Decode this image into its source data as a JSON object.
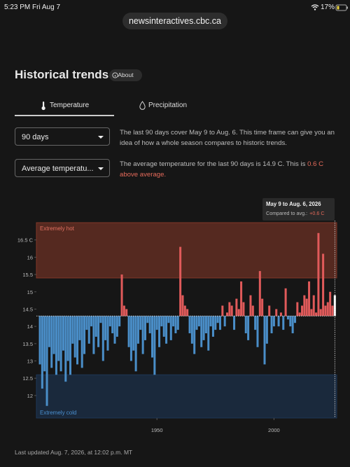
{
  "status_bar": {
    "time": "5:23 PM",
    "date": "Fri Aug 7",
    "battery": "17%"
  },
  "url": "newsinteractives.cbc.ca",
  "header": {
    "title": "Historical trends",
    "about": "About"
  },
  "tabs": [
    "Temperature",
    "Precipitation"
  ],
  "controls": {
    "period": "90 days",
    "measure": "Average temperatu..."
  },
  "descriptions": {
    "period": "The last 90 days cover May 9 to Aug. 6. This time frame can give you an idea of how a whole season compares to historic trends.",
    "measure": "The average temperature for the last 90 days is 14.9 C. This is ",
    "measure_highlight": "0.6 C above average."
  },
  "chart_data": {
    "type": "bar",
    "x": [
      1900,
      1901,
      1902,
      1903,
      1904,
      1905,
      1906,
      1907,
      1908,
      1909,
      1910,
      1911,
      1912,
      1913,
      1914,
      1915,
      1916,
      1917,
      1918,
      1919,
      1920,
      1921,
      1922,
      1923,
      1924,
      1925,
      1926,
      1927,
      1928,
      1929,
      1930,
      1931,
      1932,
      1933,
      1934,
      1935,
      1936,
      1937,
      1938,
      1939,
      1940,
      1941,
      1942,
      1943,
      1944,
      1945,
      1946,
      1947,
      1948,
      1949,
      1950,
      1951,
      1952,
      1953,
      1954,
      1955,
      1956,
      1957,
      1958,
      1959,
      1960,
      1961,
      1962,
      1963,
      1964,
      1965,
      1966,
      1967,
      1968,
      1969,
      1970,
      1971,
      1972,
      1973,
      1974,
      1975,
      1976,
      1977,
      1978,
      1979,
      1980,
      1981,
      1982,
      1983,
      1984,
      1985,
      1986,
      1987,
      1988,
      1989,
      1990,
      1991,
      1992,
      1993,
      1994,
      1995,
      1996,
      1997,
      1998,
      1999,
      2000,
      2001,
      2002,
      2003,
      2004,
      2005,
      2006,
      2007,
      2008,
      2009,
      2010,
      2011,
      2012,
      2013,
      2014,
      2015,
      2016,
      2017,
      2018,
      2019,
      2020,
      2021,
      2022,
      2023,
      2024,
      2025,
      2026
    ],
    "values": [
      12.9,
      12.2,
      12.7,
      11.7,
      13.4,
      12.8,
      13.2,
      12.6,
      13.0,
      12.7,
      13.3,
      12.4,
      13.0,
      12.6,
      13.5,
      13.1,
      12.9,
      13.6,
      12.8,
      13.2,
      13.9,
      13.5,
      14.0,
      13.2,
      13.7,
      13.4,
      14.1,
      13.0,
      13.6,
      13.3,
      14.0,
      13.8,
      13.5,
      13.7,
      14.0,
      15.5,
      14.6,
      14.5,
      13.4,
      13.0,
      13.3,
      12.7,
      13.5,
      13.9,
      13.2,
      13.6,
      14.1,
      13.8,
      13.1,
      12.6,
      13.9,
      13.4,
      14.0,
      13.7,
      13.5,
      14.1,
      13.6,
      14.0,
      13.8,
      13.9,
      16.3,
      14.9,
      14.6,
      14.5,
      13.8,
      13.5,
      13.2,
      13.9,
      14.0,
      13.4,
      13.6,
      13.8,
      13.3,
      14.0,
      13.7,
      13.9,
      14.1,
      13.9,
      14.6,
      14.0,
      14.4,
      14.7,
      14.6,
      13.9,
      14.8,
      14.5,
      15.3,
      14.7,
      13.8,
      13.6,
      14.9,
      14.6,
      13.9,
      13.4,
      15.6,
      14.8,
      12.9,
      13.5,
      14.6,
      13.8,
      14.0,
      14.5,
      14.0,
      14.4,
      13.9,
      15.1,
      14.2,
      14.0,
      13.8,
      14.1,
      14.7,
      14.4,
      14.6,
      14.9,
      14.8,
      15.3,
      14.5,
      14.9,
      14.4,
      16.7,
      14.5,
      16.1,
      14.6,
      14.7,
      15.0,
      14.6,
      14.9
    ],
    "baseline": 14.3,
    "colors": {
      "above": "#e05a5a",
      "below": "#4a8ec8"
    },
    "bands": [
      {
        "label": "Extremely hot",
        "from": 15.4,
        "to": 17,
        "color": "#8a3a2a"
      },
      {
        "label": "Extremely cold",
        "from": 11.35,
        "to": 12.6,
        "color": "#1f3a5c"
      }
    ],
    "xlim": [
      1898.5,
      2026.8
    ],
    "xticks": [
      1950,
      2000
    ],
    "ylim": [
      11.35,
      17
    ],
    "yticks": [
      12,
      12.5,
      13,
      13.5,
      14,
      14.5,
      15,
      15.5,
      16,
      {
        "value": 16.5,
        "label": "16.5 C"
      }
    ],
    "tooltip": {
      "title": "May 9 to Aug. 6, 2026",
      "label": "Compared to avg.:",
      "value": "+0.6 C"
    }
  },
  "footer": "Last updated Aug. 7, 2026, at 12:02 p.m. MT"
}
